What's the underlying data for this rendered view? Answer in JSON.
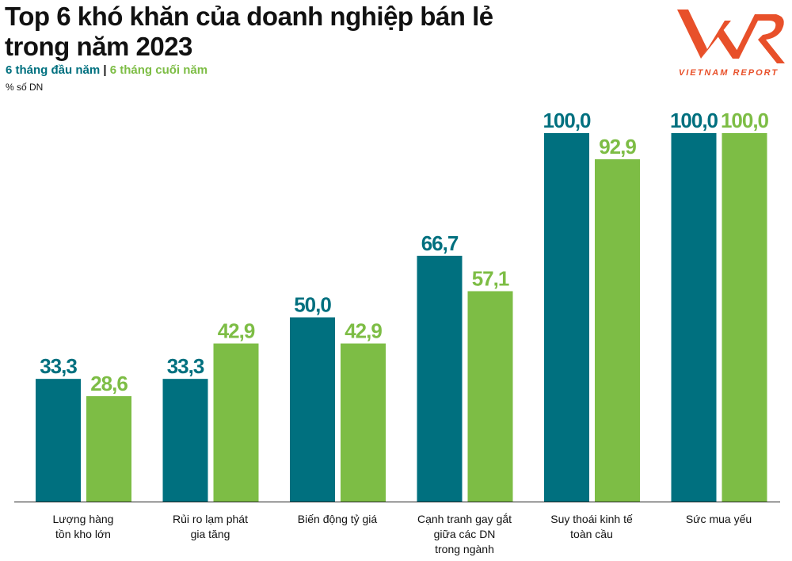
{
  "title_line1": "Top 6 khó khăn của doanh nghiệp bán lẻ",
  "title_line2": "trong năm 2023",
  "logo_text": "VIETNAM REPORT",
  "colors": {
    "first_half": "#00707f",
    "second_half": "#7dbd45",
    "logo": "#e8502a"
  },
  "chart_data": {
    "type": "bar",
    "ylabel": "% số DN",
    "ylim": [
      0,
      100
    ],
    "grid": false,
    "legend_placement": "top-left",
    "categories": [
      "Lượng hàng\ntồn kho lớn",
      "Rủi ro lạm phát\ngia tăng",
      "Biến động tỷ giá",
      "Cạnh tranh gay gắt\ngiữa các DN\ntrong ngành",
      "Suy thoái kinh tế\ntoàn cầu",
      "Sức mua yếu"
    ],
    "series": [
      {
        "name": "6 tháng đầu năm",
        "values": [
          33.3,
          33.3,
          50.0,
          66.7,
          100.0,
          100.0
        ]
      },
      {
        "name": "6 tháng cuối năm",
        "values": [
          28.6,
          42.9,
          42.9,
          57.1,
          92.9,
          100.0
        ]
      }
    ]
  }
}
